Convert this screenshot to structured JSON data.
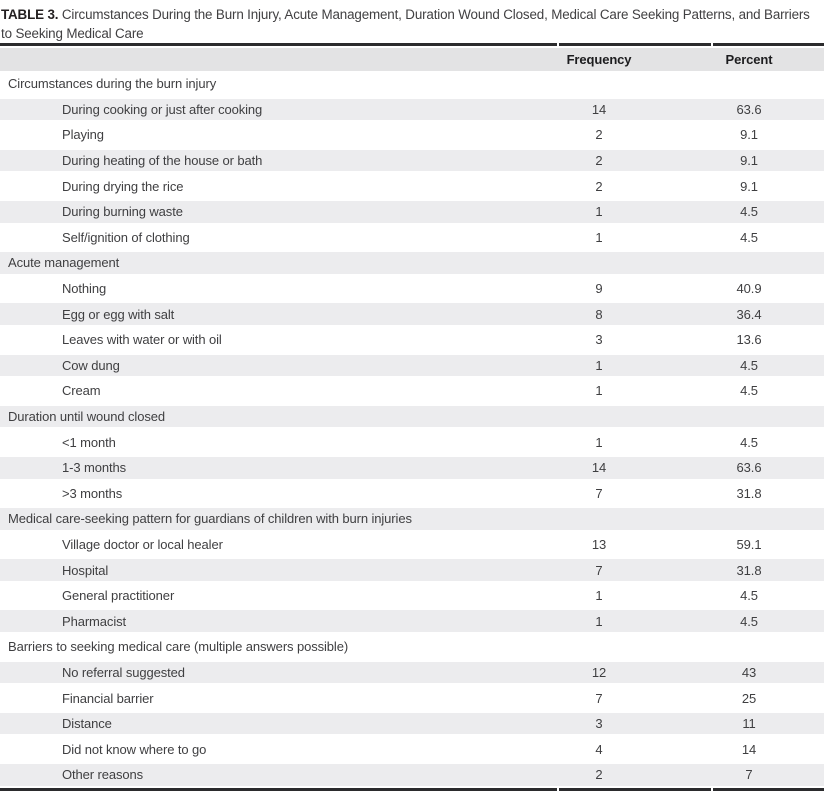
{
  "title": {
    "label": "TABLE 3.",
    "text": "Circumstances During the Burn Injury, Acute Management, Duration Wound Closed, Medical Care Seeking Patterns, and Barriers to Seeking Medical Care"
  },
  "colors": {
    "rule": "#2b2b2d",
    "header_band": "#e3e3e4",
    "row_band": "#ececee",
    "body_text": "#3f3f41",
    "caption_label": "#231f20"
  },
  "table": {
    "columns": [
      "Frequency",
      "Percent"
    ],
    "rows": [
      {
        "type": "section",
        "label": "Circumstances during the burn injury",
        "frequency": "",
        "percent": ""
      },
      {
        "type": "item",
        "label": "During cooking or just after cooking",
        "frequency": "14",
        "percent": "63.6"
      },
      {
        "type": "item",
        "label": "Playing",
        "frequency": "2",
        "percent": "9.1"
      },
      {
        "type": "item",
        "label": "During heating of the house or bath",
        "frequency": "2",
        "percent": "9.1"
      },
      {
        "type": "item",
        "label": "During drying the rice",
        "frequency": "2",
        "percent": "9.1"
      },
      {
        "type": "item",
        "label": "During burning waste",
        "frequency": "1",
        "percent": "4.5"
      },
      {
        "type": "item",
        "label": "Self/ignition of clothing",
        "frequency": "1",
        "percent": "4.5"
      },
      {
        "type": "section",
        "label": "Acute management",
        "frequency": "",
        "percent": ""
      },
      {
        "type": "item",
        "label": "Nothing",
        "frequency": "9",
        "percent": "40.9"
      },
      {
        "type": "item",
        "label": "Egg or egg with salt",
        "frequency": "8",
        "percent": "36.4"
      },
      {
        "type": "item",
        "label": "Leaves with water or with oil",
        "frequency": "3",
        "percent": "13.6"
      },
      {
        "type": "item",
        "label": "Cow dung",
        "frequency": "1",
        "percent": "4.5"
      },
      {
        "type": "item",
        "label": "Cream",
        "frequency": "1",
        "percent": "4.5"
      },
      {
        "type": "section",
        "label": "Duration until wound closed",
        "frequency": "",
        "percent": ""
      },
      {
        "type": "item",
        "label": "<1 month",
        "frequency": "1",
        "percent": "4.5"
      },
      {
        "type": "item",
        "label": "1-3 months",
        "frequency": "14",
        "percent": "63.6"
      },
      {
        "type": "item",
        "label": ">3 months",
        "frequency": "7",
        "percent": "31.8"
      },
      {
        "type": "section",
        "label": "Medical care-seeking pattern for guardians of children with burn injuries",
        "frequency": "",
        "percent": ""
      },
      {
        "type": "item",
        "label": "Village doctor or local healer",
        "frequency": "13",
        "percent": "59.1"
      },
      {
        "type": "item",
        "label": "Hospital",
        "frequency": "7",
        "percent": "31.8"
      },
      {
        "type": "item",
        "label": "General practitioner",
        "frequency": "1",
        "percent": "4.5"
      },
      {
        "type": "item",
        "label": "Pharmacist",
        "frequency": "1",
        "percent": "4.5"
      },
      {
        "type": "section",
        "label": "Barriers to seeking medical care (multiple answers possible)",
        "frequency": "",
        "percent": ""
      },
      {
        "type": "item",
        "label": "No referral suggested",
        "frequency": "12",
        "percent": "43"
      },
      {
        "type": "item",
        "label": "Financial barrier",
        "frequency": "7",
        "percent": "25"
      },
      {
        "type": "item",
        "label": "Distance",
        "frequency": "3",
        "percent": "11"
      },
      {
        "type": "item",
        "label": "Did not know where to go",
        "frequency": "4",
        "percent": "14"
      },
      {
        "type": "item",
        "label": "Other reasons",
        "frequency": "2",
        "percent": "7"
      }
    ]
  }
}
